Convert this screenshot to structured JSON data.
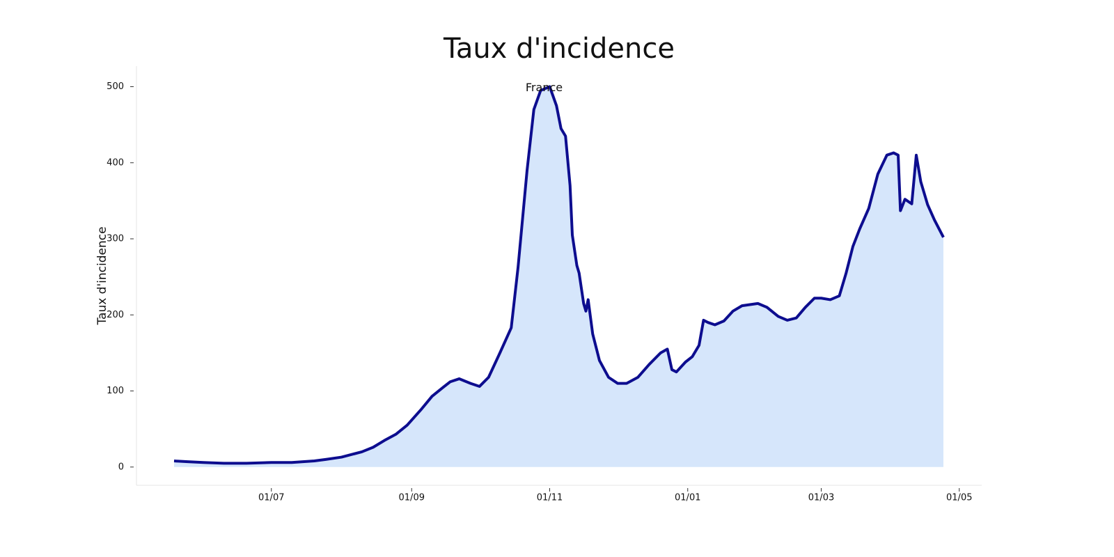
{
  "chart_data": {
    "type": "area",
    "title": "Taux d'incidence",
    "y_label": "Taux d'incidence",
    "annotation": "France",
    "x": [
      "19/05",
      "25/05",
      "01/06",
      "10/06",
      "20/06",
      "01/07",
      "10/07",
      "20/07",
      "25/07",
      "01/08",
      "10/08",
      "15/08",
      "20/08",
      "25/08",
      "30/08",
      "05/09",
      "10/09",
      "15/09",
      "18/09",
      "22/09",
      "27/09",
      "01/10",
      "05/10",
      "10/10",
      "15/10",
      "18/10",
      "22/10",
      "25/10",
      "28/10",
      "01/11",
      "04/11",
      "06/11",
      "08/11",
      "10/11",
      "11/11",
      "13/11",
      "14/11",
      "16/11",
      "17/11",
      "18/11",
      "20/11",
      "23/11",
      "27/11",
      "01/12",
      "05/12",
      "10/12",
      "15/12",
      "20/12",
      "23/12",
      "25/12",
      "27/12",
      "31/12",
      "03/01",
      "06/01",
      "08/01",
      "10/01",
      "13/01",
      "17/01",
      "21/01",
      "25/01",
      "01/02",
      "05/02",
      "10/02",
      "14/02",
      "18/02",
      "22/02",
      "26/02",
      "01/03",
      "05/03",
      "09/03",
      "12/03",
      "15/03",
      "18/03",
      "22/03",
      "26/03",
      "30/03",
      "02/04",
      "04/04",
      "05/04",
      "07/04",
      "10/04",
      "12/04",
      "14/04",
      "17/04",
      "20/04",
      "24/04"
    ],
    "series": [
      {
        "name": "France",
        "color": "#0d0d8f",
        "fill": "#d6e6fb",
        "values": [
          8,
          7,
          6,
          5,
          5,
          6,
          6,
          8,
          10,
          13,
          20,
          26,
          35,
          43,
          55,
          75,
          93,
          105,
          112,
          116,
          110,
          106,
          118,
          150,
          183,
          262,
          390,
          470,
          495,
          500,
          475,
          445,
          435,
          370,
          305,
          265,
          255,
          215,
          205,
          220,
          175,
          140,
          118,
          110,
          110,
          118,
          135,
          150,
          155,
          128,
          125,
          138,
          145,
          160,
          193,
          190,
          187,
          192,
          205,
          212,
          215,
          210,
          198,
          193,
          196,
          210,
          222,
          222,
          220,
          225,
          255,
          290,
          313,
          340,
          385,
          410,
          413,
          410,
          337,
          352,
          346,
          410,
          375,
          345,
          325,
          302
        ]
      }
    ],
    "xticks": [
      "01/07",
      "01/09",
      "01/11",
      "01/01",
      "01/03",
      "01/05"
    ],
    "ylim": [
      -24,
      527
    ],
    "yticks": [
      0,
      100,
      200,
      300,
      400,
      500
    ]
  }
}
